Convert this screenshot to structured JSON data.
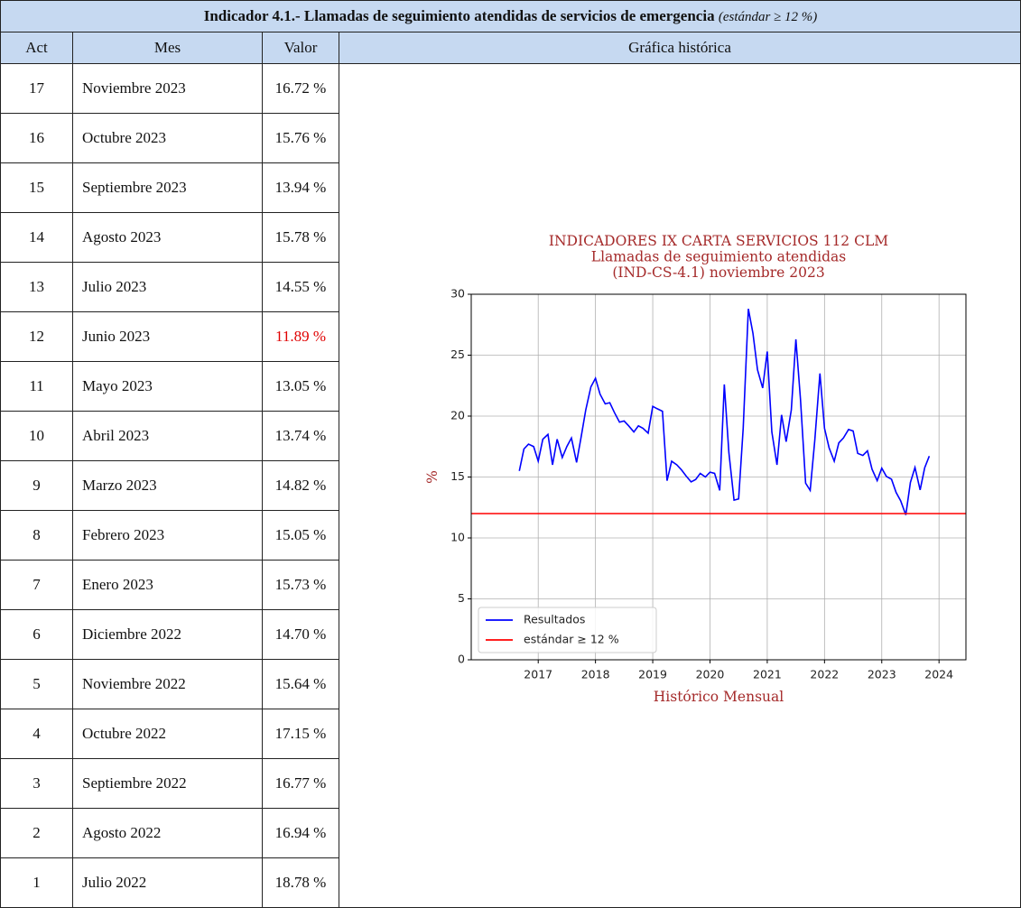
{
  "header": {
    "title": "Indicador 4.1.- Llamadas de seguimiento atendidas de servicios de emergencia",
    "subtitle": "(estándar ≥ 12 %)"
  },
  "table": {
    "columns": [
      "Act",
      "Mes",
      "Valor",
      "Gráfica histórica"
    ],
    "rows": [
      {
        "act": "17",
        "mes": "Noviembre 2023",
        "valor": "16.72 %"
      },
      {
        "act": "16",
        "mes": "Octubre 2023",
        "valor": "15.76 %"
      },
      {
        "act": "15",
        "mes": "Septiembre 2023",
        "valor": "13.94 %"
      },
      {
        "act": "14",
        "mes": "Agosto 2023",
        "valor": "15.78 %"
      },
      {
        "act": "13",
        "mes": "Julio 2023",
        "valor": "14.55 %"
      },
      {
        "act": "12",
        "mes": "Junio 2023",
        "valor": "11.89 %",
        "color": "#e00000"
      },
      {
        "act": "11",
        "mes": "Mayo 2023",
        "valor": "13.05 %"
      },
      {
        "act": "10",
        "mes": "Abril 2023",
        "valor": "13.74 %"
      },
      {
        "act": "9",
        "mes": "Marzo 2023",
        "valor": "14.82 %"
      },
      {
        "act": "8",
        "mes": "Febrero 2023",
        "valor": "15.05 %"
      },
      {
        "act": "7",
        "mes": "Enero 2023",
        "valor": "15.73 %"
      },
      {
        "act": "6",
        "mes": "Diciembre 2022",
        "valor": "14.70 %"
      },
      {
        "act": "5",
        "mes": "Noviembre 2022",
        "valor": "15.64 %"
      },
      {
        "act": "4",
        "mes": "Octubre 2022",
        "valor": "17.15 %"
      },
      {
        "act": "3",
        "mes": "Septiembre 2022",
        "valor": "16.77 %"
      },
      {
        "act": "2",
        "mes": "Agosto 2022",
        "valor": "16.94 %"
      },
      {
        "act": "1",
        "mes": "Julio 2022",
        "valor": "18.78 %"
      }
    ]
  },
  "chart_data": {
    "type": "line",
    "title": [
      "INDICADORES IX CARTA SERVICIOS 112 CLM",
      "Llamadas de seguimiento atendidas",
      "(IND-CS-4.1) noviembre 2023"
    ],
    "xlabel": "Histórico Mensual",
    "ylabel": "%",
    "xlim": [
      2015.83,
      2024.47
    ],
    "xticks": [
      2017,
      2018,
      2019,
      2020,
      2021,
      2022,
      2023,
      2024
    ],
    "ylim": [
      0,
      30
    ],
    "yticks": [
      0,
      5,
      10,
      15,
      20,
      25,
      30
    ],
    "grid": true,
    "legend": "lower left",
    "series": [
      {
        "name": "Resultados",
        "color": "#0000ff",
        "x": [
          2016.67,
          2016.75,
          2016.83,
          2016.92,
          2017.0,
          2017.08,
          2017.17,
          2017.25,
          2017.33,
          2017.42,
          2017.5,
          2017.58,
          2017.67,
          2017.75,
          2017.83,
          2017.92,
          2018.0,
          2018.08,
          2018.17,
          2018.25,
          2018.33,
          2018.42,
          2018.5,
          2018.58,
          2018.67,
          2018.75,
          2018.83,
          2018.92,
          2019.0,
          2019.08,
          2019.17,
          2019.25,
          2019.33,
          2019.42,
          2019.5,
          2019.58,
          2019.67,
          2019.75,
          2019.83,
          2019.92,
          2020.0,
          2020.08,
          2020.17,
          2020.25,
          2020.33,
          2020.42,
          2020.5,
          2020.58,
          2020.67,
          2020.75,
          2020.83,
          2020.92,
          2021.0,
          2021.08,
          2021.17,
          2021.25,
          2021.33,
          2021.42,
          2021.5,
          2021.58,
          2021.67,
          2021.75,
          2021.83,
          2021.92,
          2022.0,
          2022.08,
          2022.17,
          2022.25,
          2022.33,
          2022.42,
          2022.5,
          2022.58,
          2022.67,
          2022.75,
          2022.83,
          2022.92,
          2023.0,
          2023.08,
          2023.17,
          2023.25,
          2023.33,
          2023.42,
          2023.5,
          2023.58,
          2023.67,
          2023.75,
          2023.83
        ],
        "values": [
          15.5,
          17.3,
          17.7,
          17.5,
          16.3,
          18.1,
          18.5,
          16.0,
          18.1,
          16.6,
          17.5,
          18.2,
          16.2,
          18.3,
          20.5,
          22.4,
          23.1,
          21.8,
          21.0,
          21.1,
          20.3,
          19.5,
          19.6,
          19.2,
          18.7,
          19.2,
          19.0,
          18.6,
          20.8,
          20.6,
          20.4,
          14.7,
          16.3,
          16.0,
          15.6,
          15.1,
          14.6,
          14.8,
          15.3,
          15.0,
          15.4,
          15.3,
          13.9,
          22.6,
          17.0,
          13.1,
          13.2,
          19.0,
          28.8,
          26.8,
          23.8,
          22.3,
          25.3,
          18.7,
          16.0,
          20.1,
          17.9,
          20.5,
          26.3,
          21.4,
          14.5,
          13.9,
          18.0,
          23.5,
          19.0,
          17.4,
          16.3,
          17.8,
          18.2,
          18.9,
          18.78,
          16.94,
          16.77,
          17.15,
          15.64,
          14.7,
          15.73,
          15.05,
          14.82,
          13.74,
          13.05,
          11.89,
          14.55,
          15.78,
          13.94,
          15.76,
          16.72
        ]
      },
      {
        "name": "estándar ≥ 12 %",
        "color": "#ff0000",
        "value": 12
      }
    ]
  }
}
